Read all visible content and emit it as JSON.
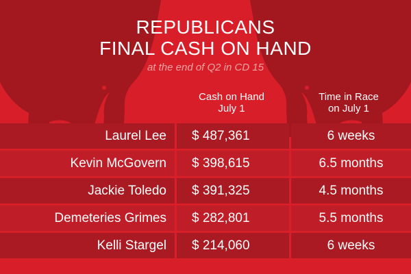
{
  "title_line1": "REPUBLICANS",
  "title_line2": "FINAL CASH ON HAND",
  "subtitle": "at the end of Q2 in CD 15",
  "colors": {
    "background": "#d81f29",
    "row_dark": "#a91a22",
    "row_light": "#bf1d27",
    "elephant": "#a3171f",
    "subtitle": "#f5a3a3"
  },
  "chart_data": {
    "type": "table",
    "columns": [
      {
        "line1": "Cash on Hand",
        "line2": "July 1"
      },
      {
        "line1": "Time in Race",
        "line2": "on July 1"
      }
    ],
    "rows": [
      {
        "name": "Laurel Lee",
        "cash": "$ 487,361",
        "time": "6 weeks"
      },
      {
        "name": "Kevin McGovern",
        "cash": "$ 398,615",
        "time": "6.5 months"
      },
      {
        "name": "Jackie Toledo",
        "cash": "$ 391,325",
        "time": "4.5 months"
      },
      {
        "name": "Demeteries Grimes",
        "cash": "$ 282,801",
        "time": "5.5 months"
      },
      {
        "name": "Kelli Stargel",
        "cash": "$ 214,060",
        "time": "6 weeks"
      }
    ]
  }
}
